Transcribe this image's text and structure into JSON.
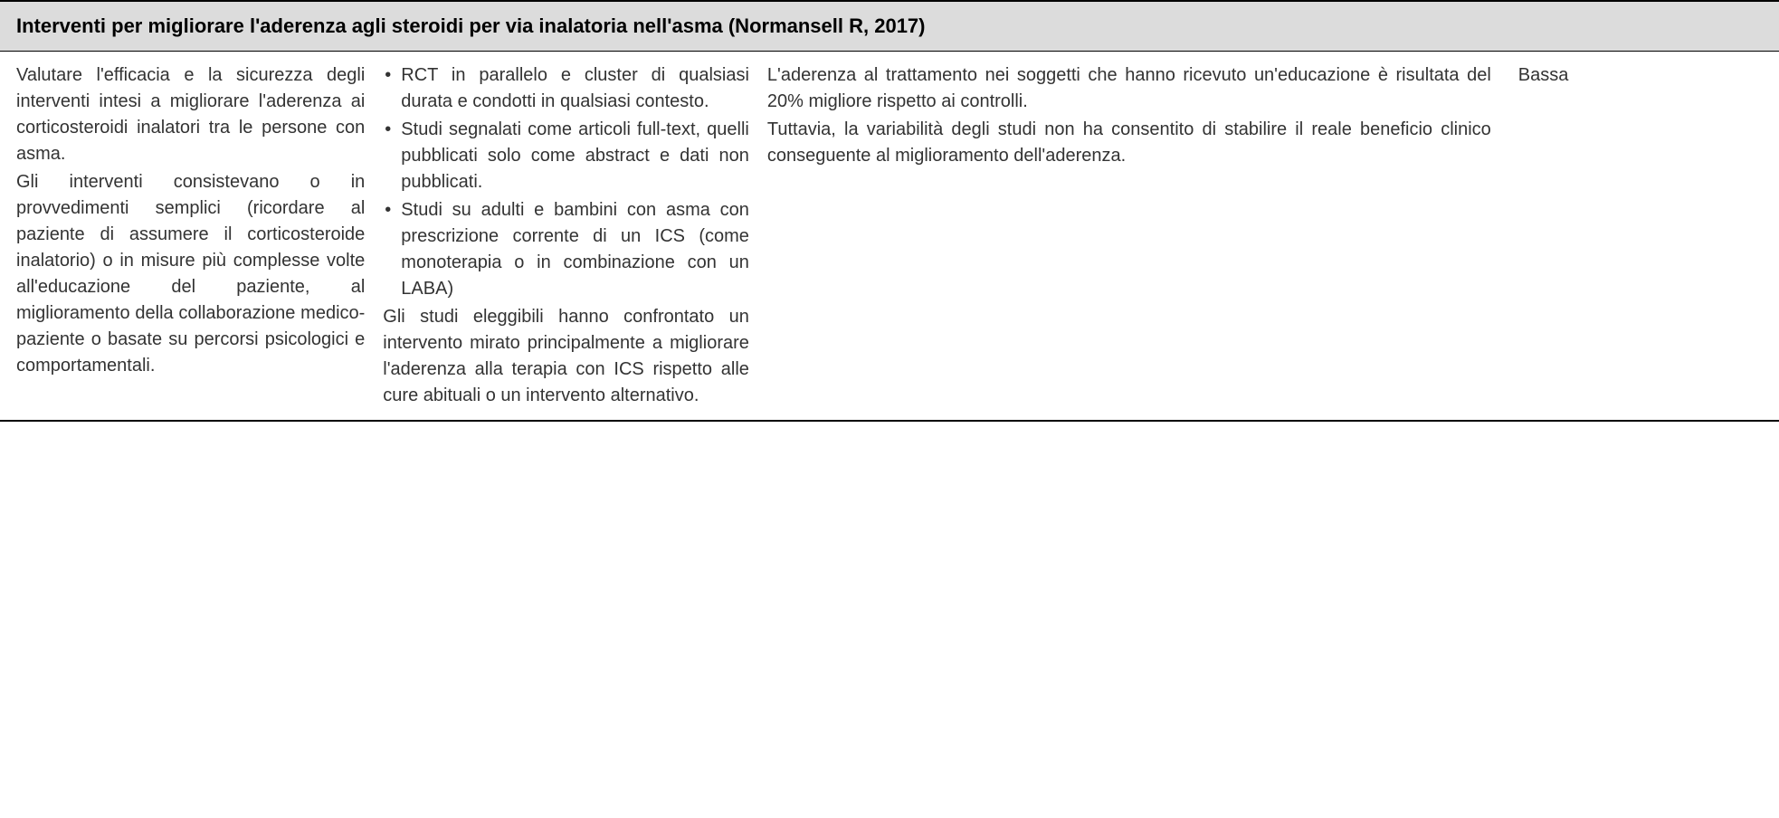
{
  "header": {
    "title": "Interventi per migliorare l'aderenza agli steroidi per via inalatoria nell'asma (Normansell R, 2017)"
  },
  "row": {
    "col1": {
      "p1": "Valutare l'efficacia e la sicurezza degli interventi intesi a migliorare l'aderenza ai corticosteroidi inalatori tra le persone con asma.",
      "p2": "Gli interventi consistevano o in provvedimenti semplici (ricordare al paziente di assumere il corticosteroide inalatorio) o in misure più complesse volte all'educazione del paziente, al miglioramento della collaborazione medico-paziente o basate su percorsi psicologici e comportamentali."
    },
    "col2": {
      "bullets": [
        "RCT in parallelo e cluster di qualsiasi durata e condotti in qualsiasi contesto.",
        "Studi segnalati come articoli full-text, quelli pubblicati solo come abstract e dati non pubblicati.",
        "Studi su adulti e bambini con asma con prescrizione corrente di un ICS (come monoterapia o in combinazione con un LABA)"
      ],
      "trailing": "Gli studi eleggibili hanno confrontato un intervento mirato principalmente a migliorare l'aderenza alla terapia con ICS rispetto alle cure abituali o un intervento alternativo."
    },
    "col3": {
      "p1": "L'aderenza al trattamento nei soggetti che hanno ricevuto un'educazione è risultata del 20% migliore rispetto ai controlli.",
      "p2": "Tuttavia, la variabilità degli studi non ha consentito di stabilire il reale beneficio clinico conseguente al miglioramento dell'aderenza."
    },
    "col4": {
      "text": "Bassa"
    }
  },
  "colors": {
    "header_bg": "#dcdcdc",
    "border": "#000000",
    "text": "#333333",
    "bg": "#ffffff"
  },
  "typography": {
    "header_fontsize": 22,
    "body_fontsize": 20,
    "font_family": "Arial"
  }
}
